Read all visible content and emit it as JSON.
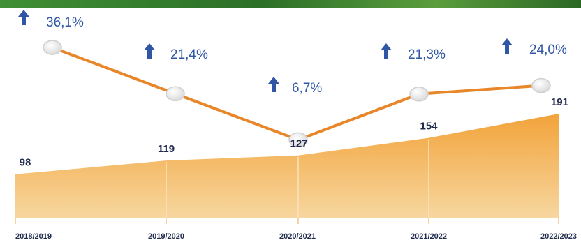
{
  "chart_data": {
    "type": "area",
    "categories": [
      "2018/2019",
      "2019/2020",
      "2020/2021",
      "2021/2022",
      "2022/2023"
    ],
    "series": [
      {
        "values": [
          98,
          119,
          127,
          154,
          191
        ]
      },
      {
        "values": [
          36.1,
          21.4,
          6.7,
          21.3,
          24.0
        ]
      }
    ],
    "value_labels": [
      "98",
      "119",
      "127",
      "154",
      "191"
    ],
    "percent_labels": [
      "36,1%",
      "21,4%",
      "6,7%",
      "21,3%",
      "24,0%"
    ],
    "title": "",
    "xlabel": "",
    "ylabel": "",
    "legend": "none",
    "grid": false
  },
  "colors": {
    "area_top": "#f2a33a",
    "area_bottom": "#f7d7a0",
    "line": "#e8862a",
    "arrow": "#2f57a6",
    "percent_text": "#2f57a6",
    "value_text": "#1f2a4d",
    "banner": "#2f7d2a"
  },
  "icons": {
    "growth_marker": "up-arrow-icon",
    "line_point": "circle-marker-icon"
  }
}
